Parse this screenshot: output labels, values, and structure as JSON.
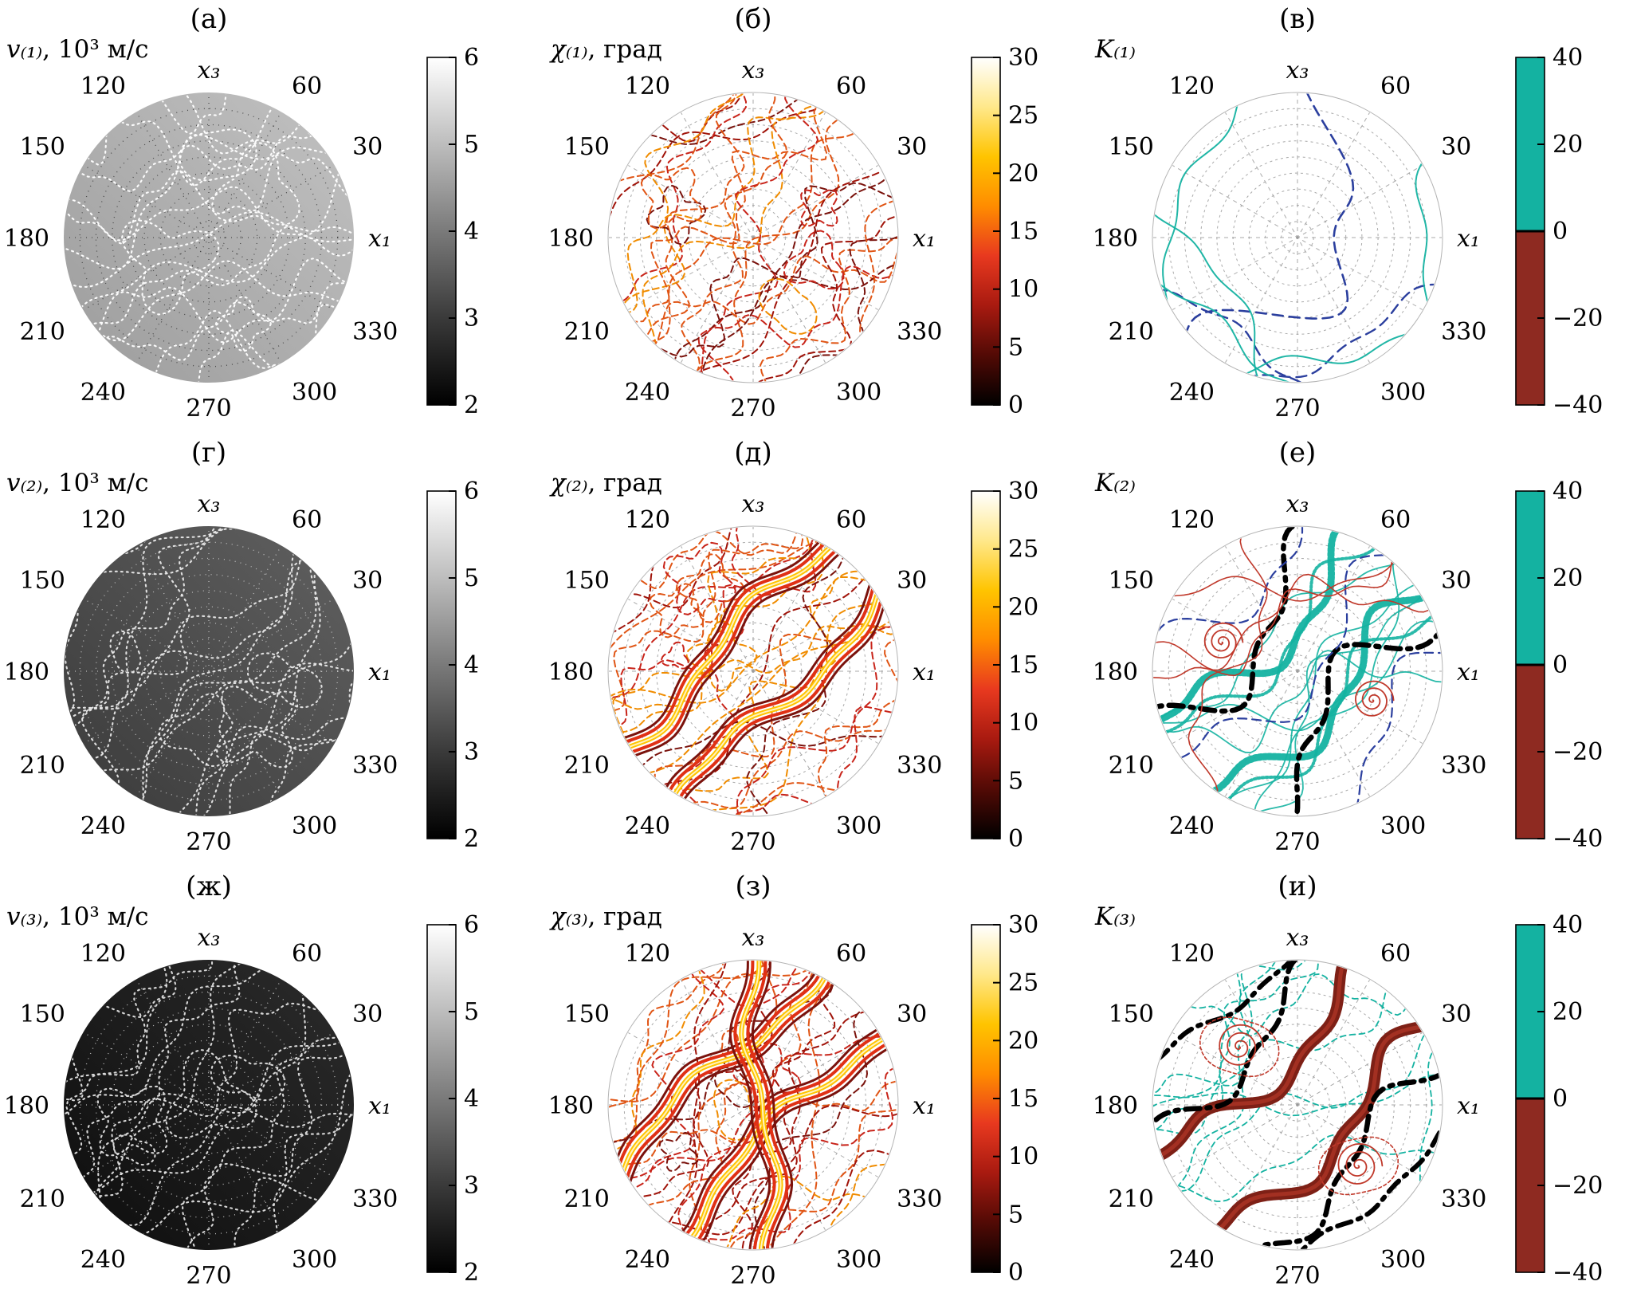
{
  "page": {
    "background": "#ffffff"
  },
  "chart_data": {
    "type": "polar_contour_grid",
    "description": "3x3 grid of stereographic polar contour plots of wave velocity, polarization angle and curvature factor",
    "shared_axes": {
      "angular_ticks_deg": [
        0,
        30,
        60,
        90,
        120,
        150,
        180,
        210,
        240,
        270,
        300,
        330
      ],
      "angular_tick_labels": [
        "x₁",
        "30",
        "60",
        "x₃",
        "120",
        "150",
        "180",
        "210",
        "240",
        "270",
        "300",
        "330"
      ],
      "radial_rings": 9
    },
    "panels": [
      {
        "id": "a",
        "panel_label": "(а)",
        "quantity_symbol": "v₍₁₎",
        "quantity_unit": ", 10³ м/с",
        "kind": "velocity",
        "colorbar": {
          "colormap": "grayscale",
          "range": [
            2,
            6
          ],
          "tick_labels": [
            "6",
            "5",
            "4",
            "3",
            "2"
          ],
          "stops": [
            "#ffffff",
            "#bdbdbd",
            "#7a7a7a",
            "#3a3a3a",
            "#000000"
          ]
        },
        "style": {
          "bg": [
            "#c2c2c2",
            "#9c9c9c"
          ],
          "contour_color": "#ffffff",
          "grid_color": "#3a3a3a",
          "flow_deg": 8
        }
      },
      {
        "id": "b",
        "panel_label": "(б)",
        "quantity_symbol": "χ₍₁₎",
        "quantity_unit": ", град",
        "kind": "chi",
        "colorbar": {
          "colormap": "hot",
          "range": [
            0,
            30
          ],
          "tick_labels": [
            "30",
            "25",
            "20",
            "15",
            "10",
            "5",
            "0"
          ],
          "stops": [
            "#ffffff",
            "#ffe88a",
            "#ffc400",
            "#ff8c00",
            "#e8391f",
            "#a81a10",
            "#520a05",
            "#000000"
          ]
        },
        "style": {
          "palette": [
            "#c8241a",
            "#e05515",
            "#f08c00",
            "#a01309",
            "#7a120c"
          ],
          "grid_color": "#9a9a9a",
          "band_offsets": [],
          "flow_deg": 45
        }
      },
      {
        "id": "c",
        "panel_label": "(в)",
        "quantity_symbol": "K₍₁₎",
        "quantity_unit": "",
        "kind": "k1",
        "colorbar": {
          "colormap": "diverging",
          "range": [
            -40,
            40
          ],
          "tick_labels": [
            "40",
            "20",
            "0",
            "−20",
            "−40"
          ],
          "positive_color": "#14b2a1",
          "negative_color": "#8e2a21"
        },
        "style": {
          "blue": "#2b3f9e",
          "teal": "#14b2a1",
          "red": "#c0392b",
          "grid_color": "#9a9a9a"
        }
      },
      {
        "id": "g",
        "panel_label": "(г)",
        "quantity_symbol": "v₍₂₎",
        "quantity_unit": ", 10³ м/с",
        "kind": "velocity",
        "colorbar": {
          "colormap": "grayscale",
          "range": [
            2,
            6
          ],
          "tick_labels": [
            "6",
            "5",
            "4",
            "3",
            "2"
          ],
          "stops": [
            "#ffffff",
            "#bdbdbd",
            "#7a7a7a",
            "#3a3a3a",
            "#000000"
          ]
        },
        "style": {
          "bg": [
            "#616161",
            "#3a3a3a"
          ],
          "contour_color": "#e8e8e8",
          "grid_color": "#d0d0d0",
          "flow_deg": 45
        }
      },
      {
        "id": "d",
        "panel_label": "(д)",
        "quantity_symbol": "χ₍₂₎",
        "quantity_unit": ", град",
        "kind": "chi",
        "colorbar": {
          "colormap": "hot",
          "range": [
            0,
            30
          ],
          "tick_labels": [
            "30",
            "25",
            "20",
            "15",
            "10",
            "5",
            "0"
          ],
          "stops": [
            "#ffffff",
            "#ffe88a",
            "#ffc400",
            "#ff8c00",
            "#e8391f",
            "#a81a10",
            "#520a05",
            "#000000"
          ]
        },
        "style": {
          "palette": [
            "#c8241a",
            "#e05515",
            "#f08c00",
            "#a01309",
            "#7a120c"
          ],
          "grid_color": "#9a9a9a",
          "band_offsets": [
            -48,
            50
          ],
          "flow_deg": 45
        }
      },
      {
        "id": "e",
        "panel_label": "(е)",
        "quantity_symbol": "K₍₂₎",
        "quantity_unit": "",
        "kind": "k2",
        "colorbar": {
          "colormap": "diverging",
          "range": [
            -40,
            40
          ],
          "tick_labels": [
            "40",
            "20",
            "0",
            "−20",
            "−40"
          ],
          "positive_color": "#14b2a1",
          "negative_color": "#8e2a21"
        },
        "style": {
          "blue": "#2b3f9e",
          "teal": "#14b2a1",
          "red": "#c0392b",
          "black": "#000000",
          "grid_color": "#9a9a9a"
        }
      },
      {
        "id": "zh",
        "panel_label": "(ж)",
        "quantity_symbol": "v₍₃₎",
        "quantity_unit": ", 10³ м/с",
        "kind": "velocity",
        "colorbar": {
          "colormap": "grayscale",
          "range": [
            2,
            6
          ],
          "tick_labels": [
            "6",
            "5",
            "4",
            "3",
            "2"
          ],
          "stops": [
            "#ffffff",
            "#bdbdbd",
            "#7a7a7a",
            "#3a3a3a",
            "#000000"
          ]
        },
        "style": {
          "bg": [
            "#2c2c2c",
            "#0d0d0d"
          ],
          "contour_color": "#e0e0e0",
          "grid_color": "#d8d8d8",
          "flow_deg": 40
        }
      },
      {
        "id": "z",
        "panel_label": "(з)",
        "quantity_symbol": "χ₍₃₎",
        "quantity_unit": ", град",
        "kind": "chi",
        "colorbar": {
          "colormap": "hot",
          "range": [
            0,
            30
          ],
          "tick_labels": [
            "30",
            "25",
            "20",
            "15",
            "10",
            "5",
            "0"
          ],
          "stops": [
            "#ffffff",
            "#ffe88a",
            "#ffc400",
            "#ff8c00",
            "#e8391f",
            "#a81a10",
            "#520a05",
            "#000000"
          ]
        },
        "style": {
          "palette": [
            "#c8241a",
            "#e05515",
            "#f08c00",
            "#a01309",
            "#7a120c"
          ],
          "grid_color": "#9a9a9a",
          "band_offsets": [
            -62,
            42
          ],
          "extra_vertical": true,
          "flow_deg": 45
        }
      },
      {
        "id": "i",
        "panel_label": "(и)",
        "quantity_symbol": "K₍₃₎",
        "quantity_unit": "",
        "kind": "k3",
        "colorbar": {
          "colormap": "diverging",
          "range": [
            -40,
            40
          ],
          "tick_labels": [
            "40",
            "20",
            "0",
            "−20",
            "−40"
          ],
          "positive_color": "#14b2a1",
          "negative_color": "#8e2a21"
        },
        "style": {
          "blue": "#2b3f9e",
          "teal": "#14b2a1",
          "red": "#c0392b",
          "darkred": "#7e2016",
          "grid_color": "#9a9a9a"
        }
      }
    ]
  }
}
